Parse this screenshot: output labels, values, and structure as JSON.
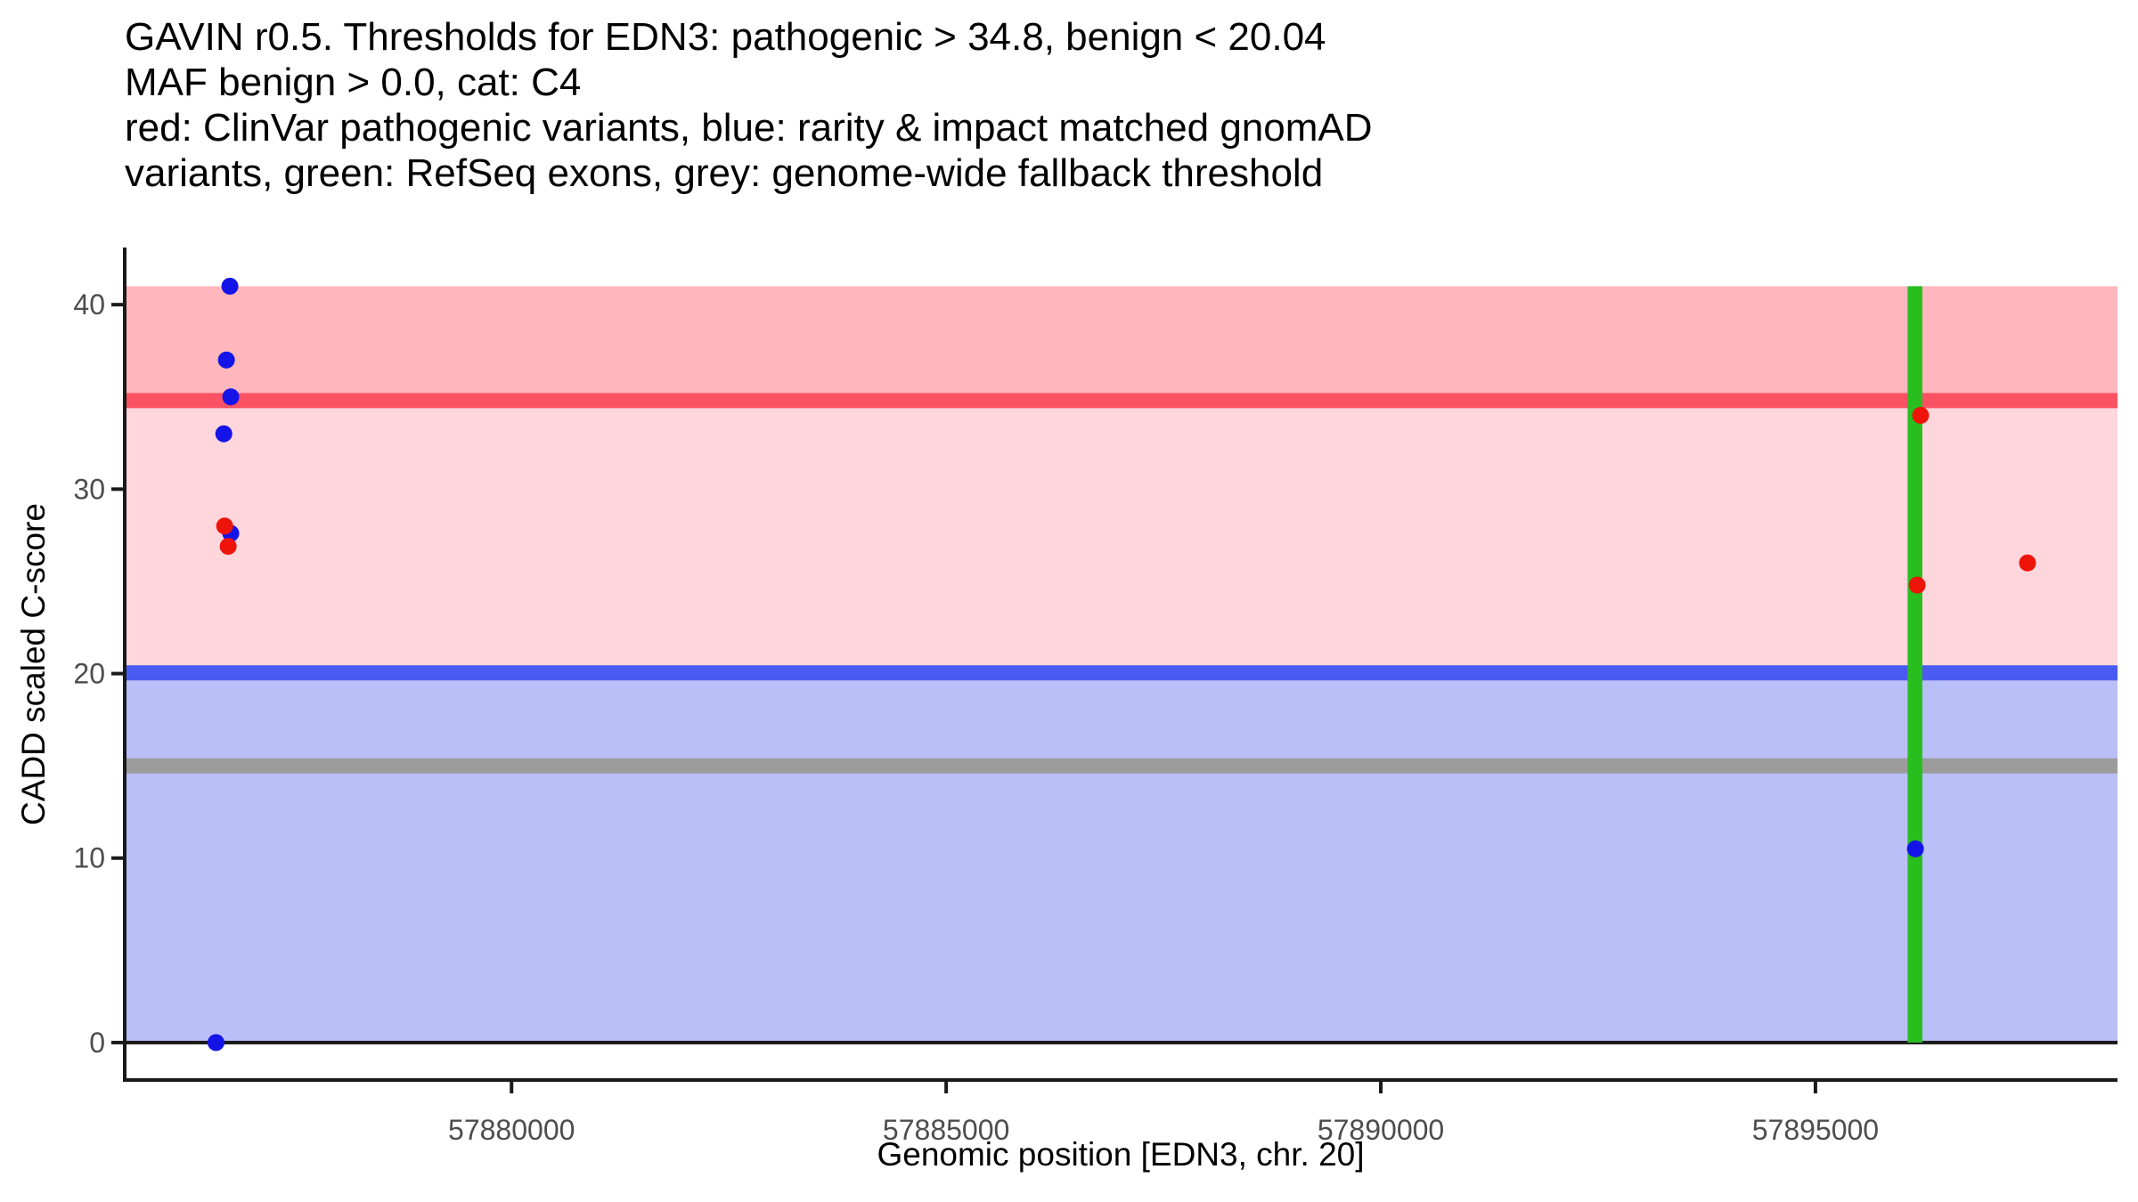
{
  "title": {
    "lines": [
      "GAVIN r0.5. Thresholds for EDN3: pathogenic > 34.8, benign < 20.04",
      "MAF benign > 0.0, cat: C4",
      "red: ClinVar pathogenic variants, blue: rarity & impact matched gnomAD",
      "variants, green: RefSeq exons, grey: genome-wide fallback threshold"
    ]
  },
  "colors": {
    "axis_line": "#1a1a1a",
    "tick_label": "#4d4d4d",
    "pathogenic_band": "#ffb6bd",
    "intermediate_band": "#ffd6db",
    "benign_band": "#b9bff7",
    "pathogenic_line": "#fa5263",
    "benign_line": "#4a5bf2",
    "fallback_line": "#9c9c9c",
    "exon_green": "#28be1e",
    "clinvar_red": "#ee1409",
    "gnomad_blue": "#1414e8"
  },
  "chart_data": {
    "type": "scatter",
    "title": "GAVIN r0.5. Thresholds for EDN3: pathogenic > 34.8, benign < 20.04 | MAF benign > 0.0, cat: C4",
    "xlabel": "Genomic position [EDN3, chr. 20]",
    "ylabel": "CADD scaled C-score",
    "xlim": [
      57875550,
      57898475
    ],
    "ylim": [
      -2.03,
      43.0
    ],
    "grid": false,
    "legend": "none (described in title text)",
    "x_ticks": [
      {
        "value": 57880000,
        "label": "57880000"
      },
      {
        "value": 57885000,
        "label": "57885000"
      },
      {
        "value": 57890000,
        "label": "57890000"
      },
      {
        "value": 57895000,
        "label": "57895000"
      }
    ],
    "y_ticks": [
      {
        "value": 0,
        "label": "0"
      },
      {
        "value": 10,
        "label": "10"
      },
      {
        "value": 20,
        "label": "20"
      },
      {
        "value": 30,
        "label": "30"
      },
      {
        "value": 40,
        "label": "40"
      }
    ],
    "regions": [
      {
        "name": "pathogenic-zone",
        "ymin": 34.8,
        "ymax": 41.0,
        "color": "#ffb6bd"
      },
      {
        "name": "intermediate-zone",
        "ymin": 20.04,
        "ymax": 34.8,
        "color": "#ffd6db"
      },
      {
        "name": "benign-zone",
        "ymin": 0.0,
        "ymax": 20.04,
        "color": "#b9bff7"
      }
    ],
    "exons": [
      {
        "name": "refseq-exon",
        "start": 57896060,
        "end": 57896230,
        "ymin": 0.0,
        "ymax": 41.0,
        "color": "#28be1e"
      }
    ],
    "thresholds": [
      {
        "name": "pathogenic-threshold",
        "value": 34.8,
        "color": "#fa5263",
        "thickness": 17
      },
      {
        "name": "benign-threshold",
        "value": 20.04,
        "color": "#4a5bf2",
        "thickness": 17
      },
      {
        "name": "genome-wide-fallback-threshold",
        "value": 15.0,
        "color": "#9c9c9c",
        "thickness": 17
      },
      {
        "name": "zero-baseline",
        "value": 0.0,
        "color": "#1a1a1a",
        "thickness": 4
      }
    ],
    "series": [
      {
        "name": "rarity & impact matched gnomAD variants",
        "color": "#1414e8",
        "points": [
          {
            "x": 57876760,
            "y": 41.0
          },
          {
            "x": 57876720,
            "y": 37.0
          },
          {
            "x": 57876770,
            "y": 35.0
          },
          {
            "x": 57876690,
            "y": 33.0
          },
          {
            "x": 57876770,
            "y": 27.6
          },
          {
            "x": 57876600,
            "y": 0.0
          },
          {
            "x": 57896150,
            "y": 10.5
          }
        ]
      },
      {
        "name": "ClinVar pathogenic variants",
        "color": "#ee1409",
        "points": [
          {
            "x": 57876700,
            "y": 28.0
          },
          {
            "x": 57876740,
            "y": 26.9
          },
          {
            "x": 57896210,
            "y": 34.0
          },
          {
            "x": 57896170,
            "y": 24.8
          },
          {
            "x": 57897440,
            "y": 26.0
          }
        ]
      }
    ],
    "point_radius_px": 9.5
  }
}
